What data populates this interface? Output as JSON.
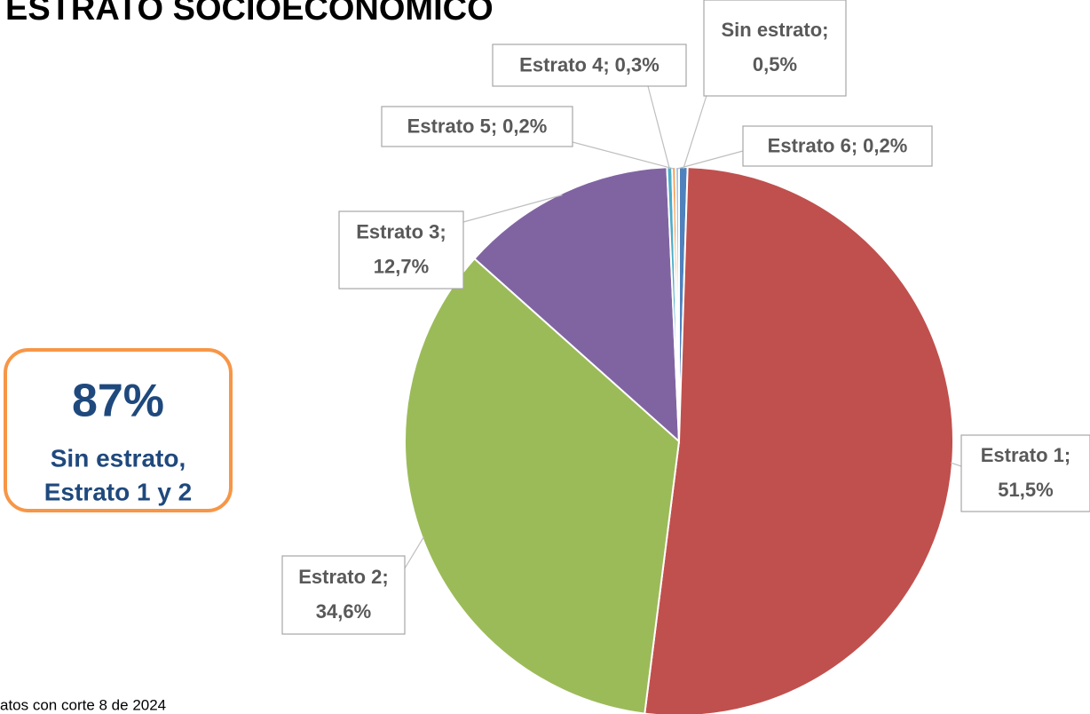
{
  "chart_data": {
    "type": "pie",
    "title": "ESTRATO SOCIOECONÓMICO",
    "categories": [
      "Sin estrato;",
      "Estrato 1;",
      "Estrato 2;",
      "Estrato 3;",
      "Estrato 4;",
      "Estrato 5;",
      "Estrato 6;"
    ],
    "values": [
      0.5,
      51.5,
      34.6,
      12.7,
      0.3,
      0.2,
      0.2
    ],
    "value_labels": [
      "0,5%",
      "51,5%",
      "34,6%",
      "12,7%",
      "0,3%",
      "0,2%",
      "0,2%"
    ],
    "colors": [
      "#4f81bd",
      "#c0504d",
      "#9bbb59",
      "#8064a2",
      "#4bacc6",
      "#f79646",
      "#9dc3e6"
    ],
    "annotation": {
      "headline": "87%",
      "lines": [
        "Sin estrato,",
        "Estrato 1 y 2"
      ]
    },
    "footnote": "atos con corte 8 de 2024"
  }
}
